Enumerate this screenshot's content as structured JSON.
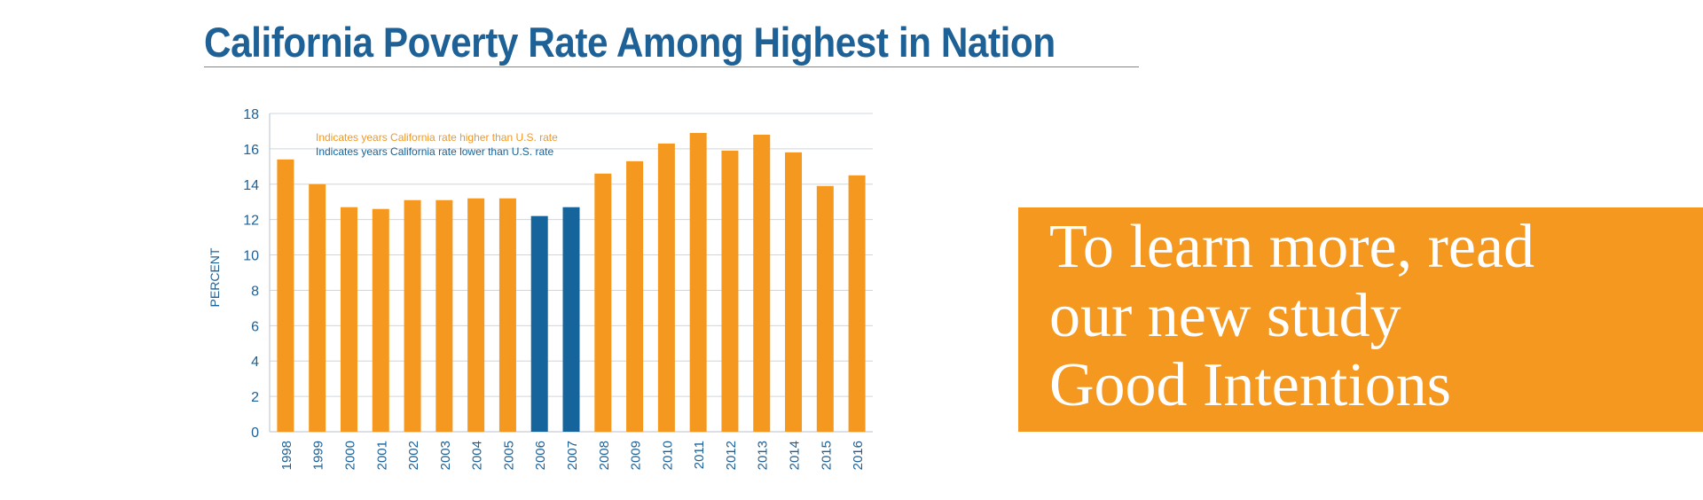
{
  "title": "California Poverty Rate Among Highest in Nation",
  "promo": {
    "lines": [
      "To learn more, read",
      "our new study",
      "Good Intentions"
    ]
  },
  "colors": {
    "higher": "#f49820",
    "lower": "#15649c",
    "axis_text": "#1e6196",
    "grid": "#cfd6de"
  },
  "chart_data": {
    "type": "bar",
    "title": "California Poverty Rate Among Highest in Nation",
    "xlabel": "",
    "ylabel": "PERCENT",
    "ylim": [
      0,
      18
    ],
    "yticks": [
      0,
      2,
      4,
      6,
      8,
      10,
      12,
      14,
      16,
      18
    ],
    "grid": true,
    "categories": [
      "1998",
      "1999",
      "2000",
      "2001",
      "2002",
      "2003",
      "2004",
      "2005",
      "2006",
      "2007",
      "2008",
      "2009",
      "2010",
      "2011",
      "2012",
      "2013",
      "2014",
      "2015",
      "2016"
    ],
    "values": [
      15.4,
      14.0,
      12.7,
      12.6,
      13.1,
      13.1,
      13.2,
      13.2,
      12.2,
      12.7,
      14.6,
      15.3,
      16.3,
      16.9,
      15.9,
      16.8,
      15.8,
      13.9,
      14.5
    ],
    "higher_than_us": [
      true,
      true,
      true,
      true,
      true,
      true,
      true,
      true,
      false,
      false,
      true,
      true,
      true,
      true,
      true,
      true,
      true,
      true,
      true
    ],
    "legend": [
      {
        "label": "Indicates years California rate higher than U.S. rate",
        "key": "higher"
      },
      {
        "label": "Indicates years California rate lower than U.S. rate",
        "key": "lower"
      }
    ],
    "legend_position": "top-left"
  }
}
